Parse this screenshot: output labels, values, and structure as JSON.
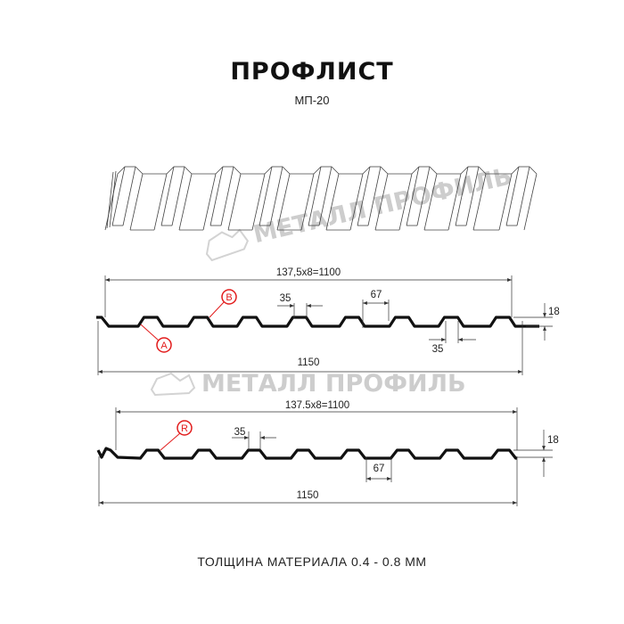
{
  "header": {
    "title": "ПРОФЛИСТ",
    "subtitle": "МП-20"
  },
  "watermark": {
    "text": "МЕТАЛЛ ПРОФИЛЬ",
    "color": "#cdcdcd"
  },
  "profile_top": {
    "pitch_label": "137,5x8=1100",
    "width_label": "1150",
    "rib_top_label": "35",
    "rib_bottom_label": "35",
    "rib_gap_label": "67",
    "height_label": "18",
    "marker_a": "A",
    "marker_b": "B"
  },
  "profile_bottom": {
    "pitch_label": "137.5x8=1100",
    "width_label": "1150",
    "rib_top_label": "35",
    "rib_gap_label": "67",
    "height_label": "18",
    "marker_r": "R"
  },
  "footer": {
    "thickness": "ТОЛЩИНА МАТЕРИАЛА 0.4 - 0.8 ММ"
  },
  "colors": {
    "profile": "#111111",
    "marker": "#e21b1b"
  }
}
